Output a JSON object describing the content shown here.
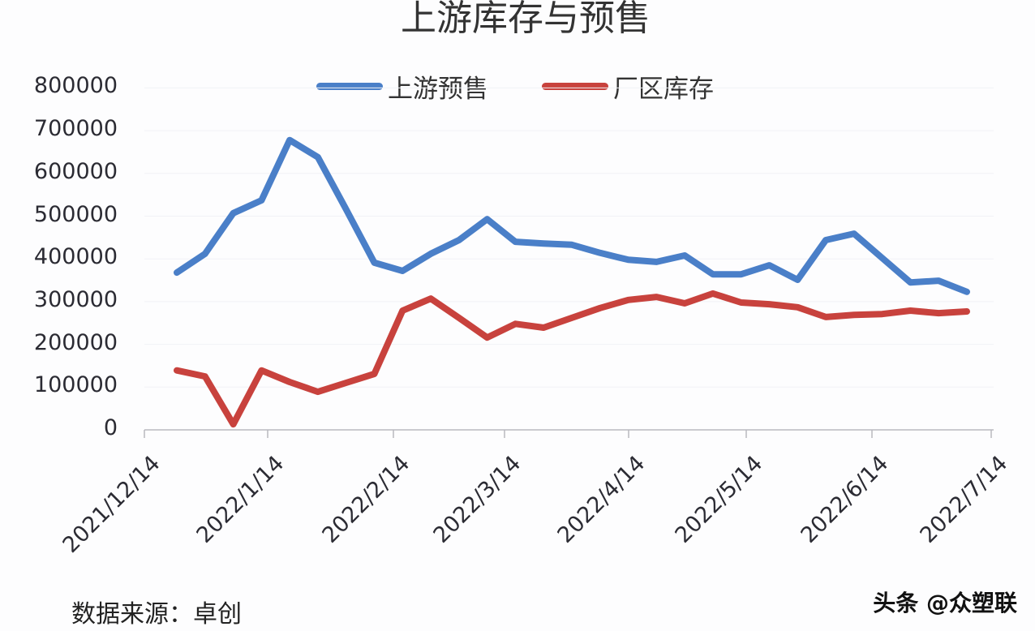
{
  "title": "上游库存与预售",
  "legend": [
    {
      "label": "上游预售",
      "color": "#4a7fc8"
    },
    {
      "label": "厂区库存",
      "color": "#c8423d"
    }
  ],
  "footer": {
    "source": "数据来源：卓创",
    "watermark": "头条 @众塑联"
  },
  "chart_data": {
    "type": "line",
    "title": "上游库存与预售",
    "xlabel": "",
    "ylabel": "",
    "ylim": [
      0,
      800000
    ],
    "yticks": [
      "800000",
      "700000",
      "600000",
      "500000",
      "400000",
      "300000",
      "200000",
      "100000",
      "0"
    ],
    "xticks": [
      "2021/12/14",
      "2022/1/14",
      "2022/2/14",
      "2022/3/14",
      "2022/4/14",
      "2022/5/14",
      "2022/6/14",
      "2022/7/14"
    ],
    "grid": true,
    "legend_position": "top",
    "series": [
      {
        "name": "上游预售",
        "color": "#4a7fc8",
        "values": [
          368000,
          412000,
          507000,
          537000,
          678000,
          638000,
          516000,
          391000,
          372000,
          412000,
          444000,
          493000,
          440000,
          436000,
          433000,
          414000,
          398000,
          393000,
          408000,
          364000,
          364000,
          385000,
          351000,
          444000,
          459000,
          402000,
          345000,
          349000,
          323000
        ]
      },
      {
        "name": "厂区库存",
        "color": "#c8423d",
        "values": [
          139000,
          125000,
          13000,
          139000,
          112000,
          89000,
          110000,
          131000,
          279000,
          307000,
          262000,
          216000,
          248000,
          239000,
          262000,
          285000,
          304000,
          311000,
          296000,
          319000,
          298000,
          294000,
          287000,
          264000,
          269000,
          271000,
          279000,
          273000,
          277000
        ]
      }
    ]
  }
}
